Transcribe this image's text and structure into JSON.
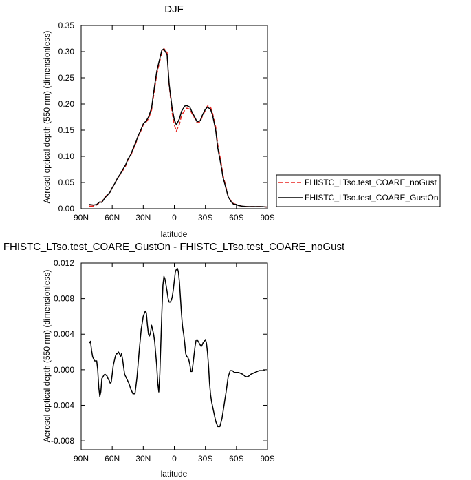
{
  "chart_data": [
    {
      "type": "line",
      "title": "DJF",
      "xlabel": "latitude",
      "ylabel": "Aerosol optical depth (550 nm) (dimensionless)",
      "xlim": [
        90,
        -90
      ],
      "ylim": [
        0,
        0.35
      ],
      "xticks": [
        90,
        60,
        30,
        0,
        -30,
        -60,
        -90
      ],
      "xtick_labels": [
        "90N",
        "60N",
        "30N",
        "0",
        "30S",
        "60S",
        "90S"
      ],
      "yticks": [
        0,
        0.05,
        0.1,
        0.15,
        0.2,
        0.25,
        0.3,
        0.35
      ],
      "ytick_labels": [
        "0.00",
        "0.05",
        "0.10",
        "0.15",
        "0.20",
        "0.25",
        "0.30",
        "0.35"
      ],
      "legend_position": "right",
      "grid": false,
      "series": [
        {
          "name": "FHISTC_LTso.test_COARE_noGust",
          "color": "#e8231e",
          "dash": "dashed",
          "x": [
            82,
            78,
            75,
            72,
            70,
            67,
            65,
            62,
            60,
            57,
            55,
            52,
            50,
            47,
            45,
            42,
            40,
            37,
            35,
            32,
            30,
            27,
            25,
            22,
            20,
            17,
            15,
            12,
            10,
            7,
            5,
            2,
            0,
            -2,
            -5,
            -7,
            -10,
            -12,
            -15,
            -17,
            -20,
            -22,
            -25,
            -27,
            -30,
            -32,
            -35,
            -37,
            -40,
            -42,
            -45,
            -47,
            -50,
            -52,
            -55,
            -57,
            -60,
            -62,
            -65,
            -70,
            -75,
            -80,
            -85,
            -90
          ],
          "y": [
            0.005,
            0.005,
            0.007,
            0.012,
            0.013,
            0.022,
            0.026,
            0.032,
            0.04,
            0.05,
            0.058,
            0.066,
            0.072,
            0.082,
            0.092,
            0.102,
            0.112,
            0.126,
            0.138,
            0.15,
            0.16,
            0.166,
            0.172,
            0.188,
            0.216,
            0.256,
            0.274,
            0.298,
            0.306,
            0.298,
            0.236,
            0.182,
            0.16,
            0.148,
            0.162,
            0.178,
            0.188,
            0.192,
            0.19,
            0.182,
            0.172,
            0.164,
            0.166,
            0.176,
            0.188,
            0.196,
            0.194,
            0.182,
            0.156,
            0.122,
            0.09,
            0.064,
            0.04,
            0.024,
            0.014,
            0.01,
            0.008,
            0.006,
            0.005,
            0.004,
            0.004,
            0.004,
            0.004,
            0.003
          ]
        },
        {
          "name": "FHISTC_LTso.test_COARE_GustOn",
          "color": "#000000",
          "dash": "solid",
          "x": [
            82,
            78,
            75,
            72,
            70,
            67,
            65,
            62,
            60,
            57,
            55,
            52,
            50,
            47,
            45,
            42,
            40,
            37,
            35,
            32,
            30,
            27,
            25,
            22,
            20,
            17,
            15,
            12,
            10,
            7,
            5,
            2,
            0,
            -2,
            -5,
            -7,
            -10,
            -12,
            -15,
            -17,
            -20,
            -22,
            -25,
            -27,
            -30,
            -32,
            -35,
            -37,
            -40,
            -42,
            -45,
            -47,
            -50,
            -52,
            -55,
            -57,
            -60,
            -62,
            -65,
            -70,
            -75,
            -80,
            -85,
            -90
          ],
          "y": [
            0.008,
            0.007,
            0.008,
            0.013,
            0.012,
            0.021,
            0.025,
            0.032,
            0.04,
            0.05,
            0.058,
            0.067,
            0.074,
            0.084,
            0.094,
            0.104,
            0.114,
            0.128,
            0.139,
            0.152,
            0.162,
            0.168,
            0.175,
            0.192,
            0.222,
            0.262,
            0.279,
            0.303,
            0.305,
            0.294,
            0.238,
            0.19,
            0.17,
            0.16,
            0.172,
            0.186,
            0.196,
            0.197,
            0.194,
            0.185,
            0.174,
            0.166,
            0.168,
            0.178,
            0.19,
            0.194,
            0.19,
            0.178,
            0.15,
            0.116,
            0.084,
            0.06,
            0.038,
            0.023,
            0.013,
            0.009,
            0.008,
            0.006,
            0.005,
            0.004,
            0.004,
            0.004,
            0.004,
            0.003
          ]
        }
      ]
    },
    {
      "type": "line",
      "title": "FHISTC_LTso.test_COARE_GustOn - FHISTC_LTso.test_COARE_noGust",
      "xlabel": "latitude",
      "ylabel": "Aerosol optical depth (550 nm) (dimensionless)",
      "xlim": [
        90,
        -90
      ],
      "ylim": [
        -0.009,
        0.012
      ],
      "xticks": [
        90,
        60,
        30,
        0,
        -30,
        -60,
        -90
      ],
      "xtick_labels": [
        "90N",
        "60N",
        "30N",
        "0",
        "30S",
        "60S",
        "90S"
      ],
      "yticks": [
        -0.008,
        -0.004,
        0,
        0.004,
        0.008,
        0.012
      ],
      "ytick_labels": [
        "-0.008",
        "-0.004",
        "0.000",
        "0.004",
        "0.008",
        "0.012"
      ],
      "grid": false,
      "series": [
        {
          "color": "#000000",
          "dash": "solid",
          "x": [
            82,
            81,
            80,
            79,
            78,
            77,
            76,
            75,
            74,
            73,
            72,
            71,
            70,
            69,
            68,
            67,
            66,
            65,
            64,
            63,
            62,
            61,
            60,
            59,
            58,
            57,
            56,
            55,
            54,
            53,
            52,
            51,
            50,
            48,
            46,
            44,
            42,
            40,
            38,
            36,
            34,
            32,
            30,
            28,
            27,
            26,
            25,
            24,
            23,
            22,
            21,
            20,
            19,
            18,
            17,
            16,
            15,
            14,
            13,
            12,
            11,
            10,
            9,
            8,
            7,
            6,
            5,
            4,
            3,
            2,
            1,
            0,
            -1,
            -2,
            -3,
            -4,
            -5,
            -6,
            -7,
            -8,
            -9,
            -10,
            -11,
            -12,
            -13,
            -14,
            -15,
            -16,
            -17,
            -18,
            -19,
            -20,
            -21,
            -22,
            -23,
            -24,
            -25,
            -26,
            -27,
            -28,
            -29,
            -30,
            -31,
            -32,
            -33,
            -34,
            -35,
            -36,
            -38,
            -40,
            -42,
            -44,
            -46,
            -48,
            -50,
            -52,
            -54,
            -56,
            -58,
            -60,
            -62,
            -64,
            -66,
            -68,
            -70,
            -72,
            -74,
            -76,
            -78,
            -80,
            -82,
            -84,
            -86,
            -88
          ],
          "y": [
            0.003,
            0.0032,
            0.0022,
            0.0015,
            0.0012,
            0.001,
            0.001,
            0.001,
            0.0,
            -0.002,
            -0.003,
            -0.0025,
            -0.001,
            -0.0008,
            -0.0006,
            -0.0005,
            -0.0006,
            -0.0007,
            -0.001,
            -0.0012,
            -0.0015,
            -0.0014,
            -0.0005,
            0.0005,
            0.001,
            0.0015,
            0.0018,
            0.0018,
            0.002,
            0.0018,
            0.0015,
            0.0018,
            0.0012,
            -0.0005,
            -0.001,
            -0.0015,
            -0.0022,
            -0.0027,
            -0.0027,
            -0.0008,
            0.002,
            0.0045,
            0.006,
            0.0066,
            0.0064,
            0.005,
            0.004,
            0.0038,
            0.0042,
            0.005,
            0.0045,
            0.004,
            0.0032,
            0.0018,
            0.0005,
            -0.0015,
            -0.0025,
            -0.0005,
            0.003,
            0.0065,
            0.0095,
            0.0105,
            0.0102,
            0.0095,
            0.0088,
            0.008,
            0.0076,
            0.0076,
            0.0078,
            0.0082,
            0.009,
            0.01,
            0.011,
            0.0113,
            0.0114,
            0.011,
            0.0098,
            0.008,
            0.0062,
            0.0048,
            0.004,
            0.003,
            0.0018,
            0.0015,
            0.0014,
            0.0011,
            0.0006,
            -0.0002,
            -0.0002,
            0.0006,
            0.0016,
            0.0026,
            0.0033,
            0.0034,
            0.0032,
            0.003,
            0.0028,
            0.0026,
            0.0028,
            0.0031,
            0.0032,
            0.0034,
            0.003,
            0.002,
            0.0005,
            -0.0015,
            -0.0028,
            -0.0036,
            -0.0047,
            -0.0058,
            -0.0064,
            -0.0064,
            -0.0055,
            -0.004,
            -0.0025,
            -0.0008,
            -0.0001,
            -0.0001,
            -0.0003,
            -0.0003,
            -0.0003,
            -0.0004,
            -0.0005,
            -0.0007,
            -0.0008,
            -0.0007,
            -0.0005,
            -0.0004,
            -0.0003,
            -0.0002,
            -0.0001,
            -0.0001,
            -0.0001,
            -0.0001
          ]
        }
      ]
    }
  ]
}
